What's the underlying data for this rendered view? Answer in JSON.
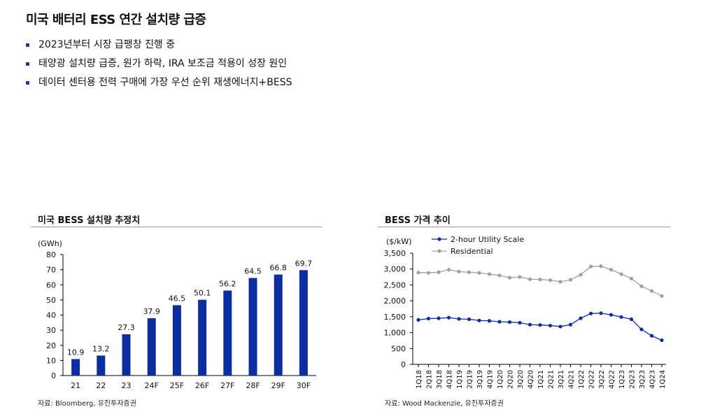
{
  "page": {
    "title": "미국 배터리 ESS 연간 설치량 급증",
    "bullets": [
      "2023년부터 시장 급팽창 진행 중",
      "태양광 설치량 급증, 원가 하락, IRA 보조금 적용이 성장 원인",
      "데이터 센터용 전력 구매에 가장 우선 순위 재생에너지+BESS"
    ]
  },
  "colors": {
    "bar": "#0c2ea0",
    "utility": "#0c2ea0",
    "residential": "#a0a0a0",
    "accent": "#1f3c88"
  },
  "chart_data": [
    {
      "type": "bar",
      "title": "미국 BESS 설치량 추정치",
      "ylabel": "(GWh)",
      "categories": [
        "21",
        "22",
        "23",
        "24F",
        "25F",
        "26F",
        "27F",
        "28F",
        "29F",
        "30F"
      ],
      "values": [
        10.9,
        13.2,
        27.3,
        37.9,
        46.5,
        50.1,
        56.2,
        64.5,
        66.8,
        69.7
      ],
      "value_labels": [
        "10.9",
        "13.2",
        "27.3",
        "37.9",
        "46.5",
        "50.1",
        "56.2",
        "64.5",
        "66.8",
        "69.7"
      ],
      "ylim": [
        0,
        80
      ],
      "yticks": [
        0,
        10,
        20,
        30,
        40,
        50,
        60,
        70,
        80
      ],
      "source": "자료: Bloomberg, 유진투자증권"
    },
    {
      "type": "line",
      "title": "BESS 가격 추이",
      "ylabel": "($/kW)",
      "categories": [
        "1Q18",
        "2Q18",
        "3Q18",
        "4Q18",
        "1Q19",
        "2Q19",
        "3Q19",
        "4Q19",
        "1Q20",
        "2Q20",
        "3Q20",
        "4Q20",
        "1Q21",
        "2Q21",
        "3Q21",
        "4Q21",
        "1Q22",
        "2Q22",
        "3Q22",
        "4Q22",
        "1Q23",
        "2Q23",
        "3Q23",
        "4Q23",
        "1Q24"
      ],
      "series": [
        {
          "name": "2-hour Utility Scale",
          "values": [
            1400,
            1440,
            1450,
            1470,
            1430,
            1420,
            1380,
            1370,
            1340,
            1330,
            1310,
            1250,
            1240,
            1220,
            1190,
            1250,
            1450,
            1600,
            1610,
            1560,
            1490,
            1420,
            1100,
            900,
            760
          ]
        },
        {
          "name": "Residential",
          "values": [
            2890,
            2880,
            2900,
            2980,
            2920,
            2900,
            2880,
            2840,
            2800,
            2730,
            2750,
            2680,
            2670,
            2650,
            2600,
            2660,
            2820,
            3080,
            3090,
            2980,
            2840,
            2700,
            2460,
            2310,
            2150
          ]
        }
      ],
      "ylim": [
        0,
        3500
      ],
      "yticks": [
        0,
        500,
        1000,
        1500,
        2000,
        2500,
        3000,
        3500
      ],
      "ytick_labels": [
        "0",
        "500",
        "1,000",
        "1,500",
        "2,000",
        "2,500",
        "3,000",
        "3,500"
      ],
      "legend": "top-left",
      "source": "자료: Wood Mackenzie, 유진투자증권"
    }
  ]
}
